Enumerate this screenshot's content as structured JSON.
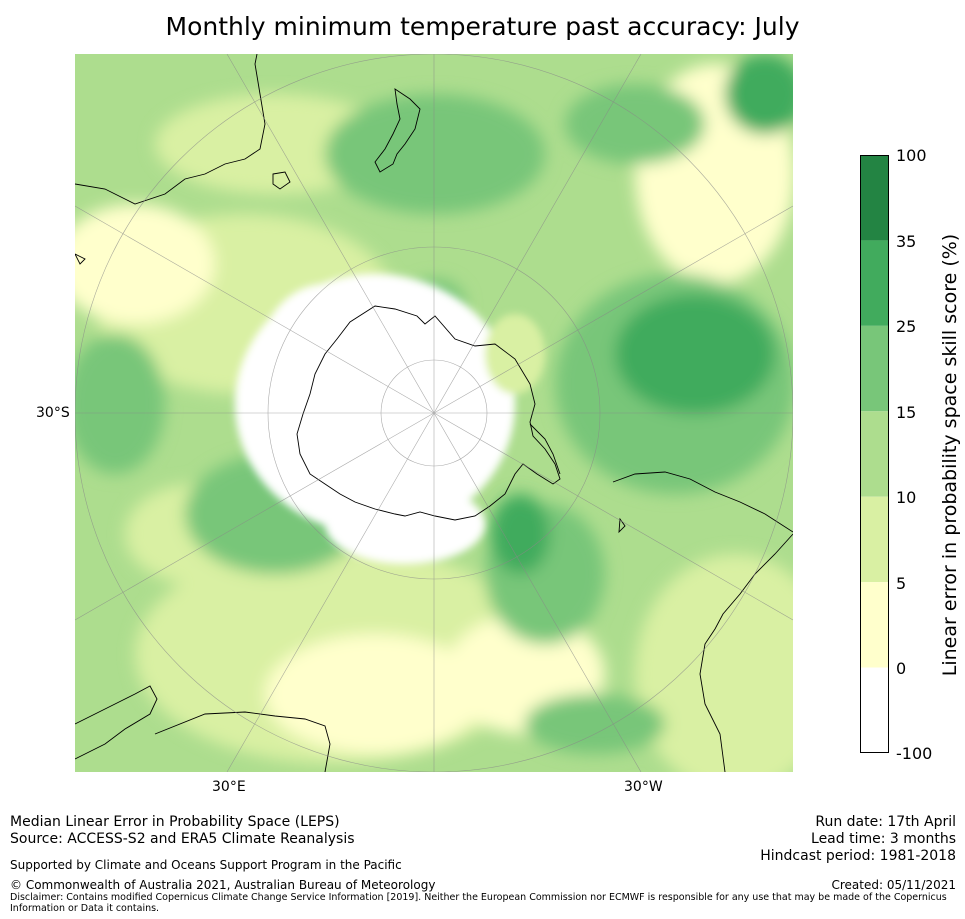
{
  "title": "Monthly minimum temperature past accuracy: July",
  "map": {
    "projection": "south-polar-stereographic",
    "lat_label": "30°S",
    "lon_labels": [
      "30°E",
      "30°W"
    ],
    "colors": {
      "c_neg": "#ffffff",
      "c0": "#ffffcc",
      "c5": "#d9f0a3",
      "c10": "#addd8e",
      "c15": "#78c679",
      "c25": "#41ab5d",
      "c35": "#238443",
      "land_edge": "#000000",
      "grid": "#888888"
    }
  },
  "colorbar": {
    "label": "Linear error in probability space skill score (%)",
    "ticks": [
      "100",
      "35",
      "25",
      "15",
      "10",
      "5",
      "0",
      "-100"
    ],
    "bands": [
      "#238443",
      "#41ab5d",
      "#78c679",
      "#addd8e",
      "#d9f0a3",
      "#ffffcc",
      "#ffffff"
    ]
  },
  "footer": {
    "line1": "Median Linear Error in Probability Space (LEPS)",
    "line2": "Source: ACCESS-S2 and ERA5 Climate Reanalysis",
    "support": "Supported by Climate and Oceans Support Program in the Pacific",
    "copyright": "© Commonwealth of Australia 2021, Australian Bureau of Meteorology",
    "disclaimer1": "Disclaimer: Contains modified Copernicus Climate Change Service Information [2019]. Neither the European Commission nor ECMWF is responsible for any use that may be made of the Copernicus",
    "disclaimer2": "Information or Data it contains.",
    "run_date": "Run date: 17th April",
    "lead_time": "Lead time: 3 months",
    "hindcast": "Hindcast period: 1981-2018",
    "created": "Created: 05/11/2021"
  }
}
